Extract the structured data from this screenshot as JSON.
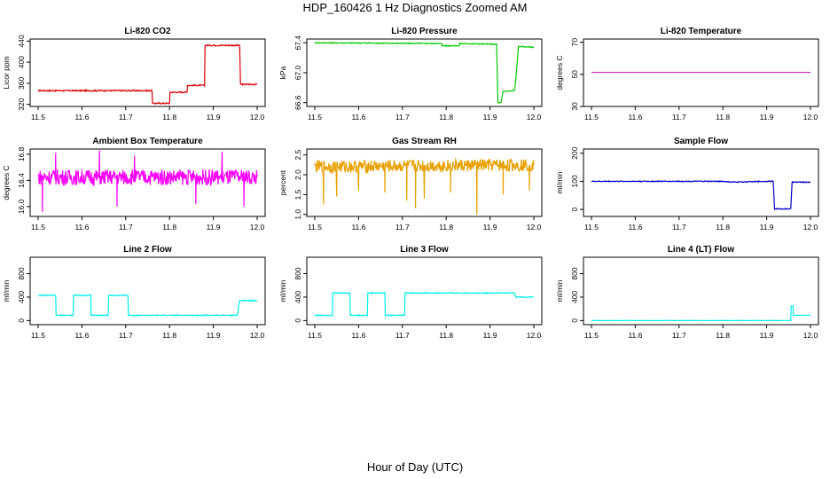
{
  "figure": {
    "title": "HDP_160426  1 Hz Diagnostics Zoomed AM",
    "xlabel": "Hour of Day (UTC)"
  },
  "chart_data": [
    {
      "type": "line",
      "title": "Li-820 CO2",
      "ylabel": "Licor ppm",
      "color": "#dd0000",
      "xlim": [
        11.5,
        12.0
      ],
      "ylim": [
        316,
        444
      ],
      "xticks": [
        11.5,
        11.6,
        11.7,
        11.8,
        11.9,
        12.0
      ],
      "yticks": [
        320,
        360,
        400,
        440
      ],
      "x": [
        11.5,
        11.76,
        11.761,
        11.8,
        11.801,
        11.84,
        11.841,
        11.88,
        11.881,
        11.96,
        11.962,
        12.0
      ],
      "y": [
        346,
        346,
        322,
        322,
        343,
        343,
        356,
        356,
        432,
        432,
        358,
        358
      ],
      "noise": 1.2
    },
    {
      "type": "line",
      "title": "Li-820 Pressure",
      "ylabel": "kPa",
      "color": "#00cc00",
      "xlim": [
        11.5,
        12.0
      ],
      "ylim": [
        66.55,
        67.45
      ],
      "xticks": [
        11.5,
        11.6,
        11.7,
        11.8,
        11.9,
        12.0
      ],
      "yticks": [
        66.6,
        67.0,
        67.4
      ],
      "x": [
        11.5,
        11.79,
        11.791,
        11.83,
        11.831,
        11.915,
        11.918,
        11.925,
        11.93,
        11.955,
        11.958,
        11.965,
        11.97,
        12.0
      ],
      "y": [
        67.4,
        67.39,
        67.36,
        67.36,
        67.39,
        67.38,
        66.6,
        66.6,
        66.75,
        66.76,
        66.85,
        67.35,
        67.35,
        67.34
      ],
      "noise": 0.006
    },
    {
      "type": "line",
      "title": "Li-820 Temperature",
      "ylabel": "degrees C",
      "color": "#cc00cc",
      "xlim": [
        11.5,
        12.0
      ],
      "ylim": [
        30,
        72
      ],
      "xticks": [
        11.5,
        11.6,
        11.7,
        11.8,
        11.9,
        12.0
      ],
      "yticks": [
        30,
        50,
        70
      ],
      "x": [
        11.5,
        12.0
      ],
      "y": [
        51.2,
        51.2
      ],
      "noise": 0
    },
    {
      "type": "line",
      "title": "Ambient Box Temperature",
      "ylabel": "degrees C",
      "color": "#ff00ff",
      "xlim": [
        11.5,
        12.0
      ],
      "ylim": [
        15.85,
        16.88
      ],
      "xticks": [
        11.5,
        11.6,
        11.7,
        11.8,
        11.9,
        12.0
      ],
      "yticks": [
        16.0,
        16.4,
        16.8
      ],
      "x": [
        11.5,
        12.0
      ],
      "y": [
        16.45,
        16.45
      ],
      "noise": 0.12,
      "spikes": [
        [
          11.51,
          15.92
        ],
        [
          11.54,
          16.82
        ],
        [
          11.64,
          16.86
        ],
        [
          11.68,
          16.0
        ],
        [
          11.72,
          16.78
        ],
        [
          11.86,
          16.04
        ],
        [
          11.92,
          16.84
        ],
        [
          11.97,
          16.0
        ]
      ]
    },
    {
      "type": "line",
      "title": "Gas Stream RH",
      "ylabel": "percent",
      "color": "#e8a000",
      "xlim": [
        11.5,
        12.0
      ],
      "ylim": [
        0.95,
        2.65
      ],
      "xticks": [
        11.5,
        11.6,
        11.7,
        11.8,
        11.9,
        12.0
      ],
      "yticks": [
        1.0,
        1.5,
        2.0,
        2.5
      ],
      "x": [
        11.5,
        12.0
      ],
      "y": [
        2.2,
        2.25
      ],
      "noise": 0.16,
      "spikes": [
        [
          11.52,
          1.25
        ],
        [
          11.55,
          1.45
        ],
        [
          11.6,
          1.6
        ],
        [
          11.66,
          1.55
        ],
        [
          11.71,
          1.35
        ],
        [
          11.73,
          1.15
        ],
        [
          11.75,
          1.4
        ],
        [
          11.81,
          1.55
        ],
        [
          11.87,
          1.0
        ],
        [
          11.93,
          1.5
        ],
        [
          11.99,
          1.6
        ]
      ]
    },
    {
      "type": "line",
      "title": "Sample Flow",
      "ylabel": "ml/min",
      "color": "#0000cc",
      "xlim": [
        11.5,
        12.0
      ],
      "ylim": [
        -25,
        215
      ],
      "xticks": [
        11.5,
        11.6,
        11.7,
        11.8,
        11.9,
        12.0
      ],
      "yticks": [
        0,
        100,
        200
      ],
      "x": [
        11.5,
        11.8,
        11.82,
        11.9,
        11.915,
        11.918,
        11.955,
        11.958,
        12.0
      ],
      "y": [
        100,
        100,
        97,
        100,
        100,
        2,
        2,
        97,
        97
      ],
      "noise": 1.5
    },
    {
      "type": "line",
      "title": "Line 2 Flow",
      "ylabel": "ml/min",
      "color": "#00eeee",
      "xlim": [
        11.5,
        12.0
      ],
      "ylim": [
        -70,
        1080
      ],
      "xticks": [
        11.5,
        11.6,
        11.7,
        11.8,
        11.9,
        12.0
      ],
      "yticks": [
        0,
        400,
        800
      ],
      "x": [
        11.5,
        11.54,
        11.541,
        11.58,
        11.581,
        11.62,
        11.621,
        11.66,
        11.661,
        11.705,
        11.706,
        11.955,
        11.96,
        12.0
      ],
      "y": [
        430,
        430,
        90,
        90,
        430,
        430,
        90,
        90,
        430,
        430,
        90,
        90,
        340,
        340
      ],
      "noise": 8
    },
    {
      "type": "line",
      "title": "Line 3 Flow",
      "ylabel": "ml/min",
      "color": "#00eeee",
      "xlim": [
        11.5,
        12.0
      ],
      "ylim": [
        -70,
        1080
      ],
      "xticks": [
        11.5,
        11.6,
        11.7,
        11.8,
        11.9,
        12.0
      ],
      "yticks": [
        0,
        400,
        800
      ],
      "x": [
        11.5,
        11.54,
        11.541,
        11.58,
        11.581,
        11.62,
        11.621,
        11.66,
        11.661,
        11.705,
        11.706,
        11.955,
        11.96,
        12.0
      ],
      "y": [
        90,
        90,
        470,
        470,
        90,
        90,
        470,
        470,
        90,
        90,
        470,
        470,
        400,
        400
      ],
      "noise": 8
    },
    {
      "type": "line",
      "title": "Line 4 (LT) Flow",
      "ylabel": "ml/min",
      "color": "#00eeee",
      "xlim": [
        11.5,
        12.0
      ],
      "ylim": [
        -70,
        1080
      ],
      "xticks": [
        11.5,
        11.6,
        11.7,
        11.8,
        11.9,
        12.0
      ],
      "yticks": [
        0,
        400,
        800
      ],
      "x": [
        11.5,
        11.955,
        11.956,
        11.96,
        11.961,
        12.0
      ],
      "y": [
        0,
        0,
        250,
        250,
        90,
        90
      ],
      "noise": 2
    }
  ]
}
